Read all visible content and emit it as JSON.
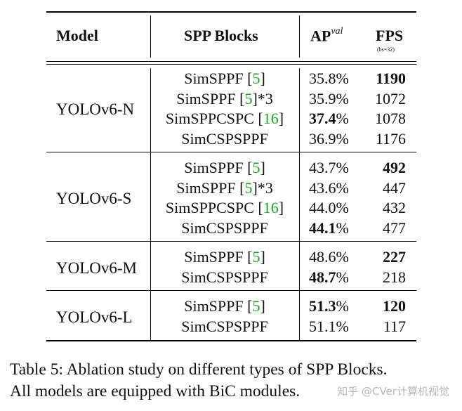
{
  "table": {
    "headers": {
      "model": "Model",
      "blocks": "SPP Blocks",
      "ap": "AP",
      "ap_sup": "val",
      "fps": "FPS",
      "fps_note": "(bs=32)"
    },
    "groups": [
      {
        "model": "YOLOv6-N",
        "rows": [
          {
            "block": "SimSPPF ",
            "ref": "5",
            "suffix": "",
            "ap": "35.8",
            "ap_bold": false,
            "fps": "1190",
            "fps_bold": true
          },
          {
            "block": "SimSPPF ",
            "ref": "5",
            "suffix": "*3",
            "ap": "35.9",
            "ap_bold": false,
            "fps": "1072",
            "fps_bold": false
          },
          {
            "block": "SimSPPCSPC ",
            "ref": "16",
            "suffix": "",
            "ap": "37.4",
            "ap_bold": true,
            "fps": "1078",
            "fps_bold": false
          },
          {
            "block": "SimCSPSPPF",
            "ref": "",
            "suffix": "",
            "ap": "36.9",
            "ap_bold": false,
            "fps": "1176",
            "fps_bold": false
          }
        ]
      },
      {
        "model": "YOLOv6-S",
        "rows": [
          {
            "block": "SimSPPF ",
            "ref": "5",
            "suffix": "",
            "ap": "43.7",
            "ap_bold": false,
            "fps": "492",
            "fps_bold": true
          },
          {
            "block": "SimSPPF ",
            "ref": "5",
            "suffix": "*3",
            "ap": "43.6",
            "ap_bold": false,
            "fps": "447",
            "fps_bold": false
          },
          {
            "block": "SimSPPCSPC ",
            "ref": "16",
            "suffix": "",
            "ap": "44.0",
            "ap_bold": false,
            "fps": "432",
            "fps_bold": false
          },
          {
            "block": "SimCSPSPPF",
            "ref": "",
            "suffix": "",
            "ap": "44.1",
            "ap_bold": true,
            "fps": "477",
            "fps_bold": false
          }
        ]
      },
      {
        "model": "YOLOv6-M",
        "rows": [
          {
            "block": "SimSPPF ",
            "ref": "5",
            "suffix": "",
            "ap": "48.6",
            "ap_bold": false,
            "fps": "227",
            "fps_bold": true
          },
          {
            "block": "SimCSPSPPF",
            "ref": "",
            "suffix": "",
            "ap": "48.7",
            "ap_bold": true,
            "fps": "218",
            "fps_bold": false
          }
        ]
      },
      {
        "model": "YOLOv6-L",
        "rows": [
          {
            "block": "SimSPPF ",
            "ref": "5",
            "suffix": "",
            "ap": "51.3",
            "ap_bold": true,
            "fps": "120",
            "fps_bold": true
          },
          {
            "block": "SimCSPSPPF",
            "ref": "",
            "suffix": "",
            "ap": "51.1",
            "ap_bold": false,
            "fps": "117",
            "fps_bold": false
          }
        ]
      }
    ]
  },
  "caption": {
    "line1": "Table 5: Ablation study on different types of SPP Blocks.",
    "line2": "All models are equipped with BiC modules."
  },
  "watermark": "知乎 @CVer计算机视觉",
  "colors": {
    "citation": "#1aa31a",
    "rule": "#000000"
  }
}
